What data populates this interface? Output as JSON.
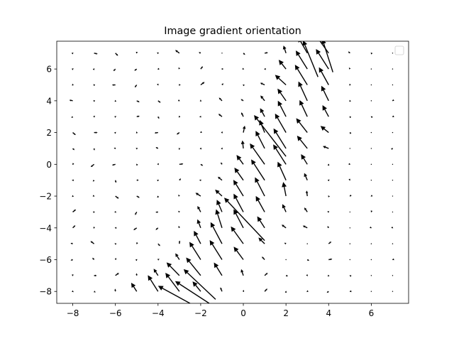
{
  "chart_data": {
    "type": "quiver",
    "title": "Image gradient orientation",
    "xlabel": "",
    "ylabel": "",
    "xlim": [
      -8.75,
      7.75
    ],
    "ylim": [
      -8.75,
      7.75
    ],
    "xticks": [
      -8,
      -6,
      -4,
      -2,
      0,
      2,
      4,
      6
    ],
    "yticks": [
      -8,
      -6,
      -4,
      -2,
      0,
      2,
      4,
      6
    ],
    "grid": false,
    "legend": {
      "placement": "upper-right",
      "entries": []
    },
    "arrow_color": "#000000",
    "field_note_x_range": [
      -8,
      7
    ],
    "field_note_y_range": [
      -8,
      7
    ],
    "vectors": [
      {
        "x": -2.5,
        "y": -8.75,
        "u": -1.5,
        "v": 1.1
      },
      {
        "x": -1.6,
        "y": -8.75,
        "u": -1.6,
        "v": 1.4
      },
      {
        "x": -1.3,
        "y": -8.5,
        "u": -1.5,
        "v": 1.9
      },
      {
        "x": 1.0,
        "y": -4.8,
        "u": -1.9,
        "v": 2.7
      },
      {
        "x": 2.0,
        "y": 0.5,
        "u": -1.5,
        "v": 2.6
      },
      {
        "x": 3.5,
        "y": 5.5,
        "u": -0.7,
        "v": 2.3
      },
      {
        "x": 4.2,
        "y": 5.8,
        "u": -0.5,
        "v": 2.1
      }
    ]
  }
}
